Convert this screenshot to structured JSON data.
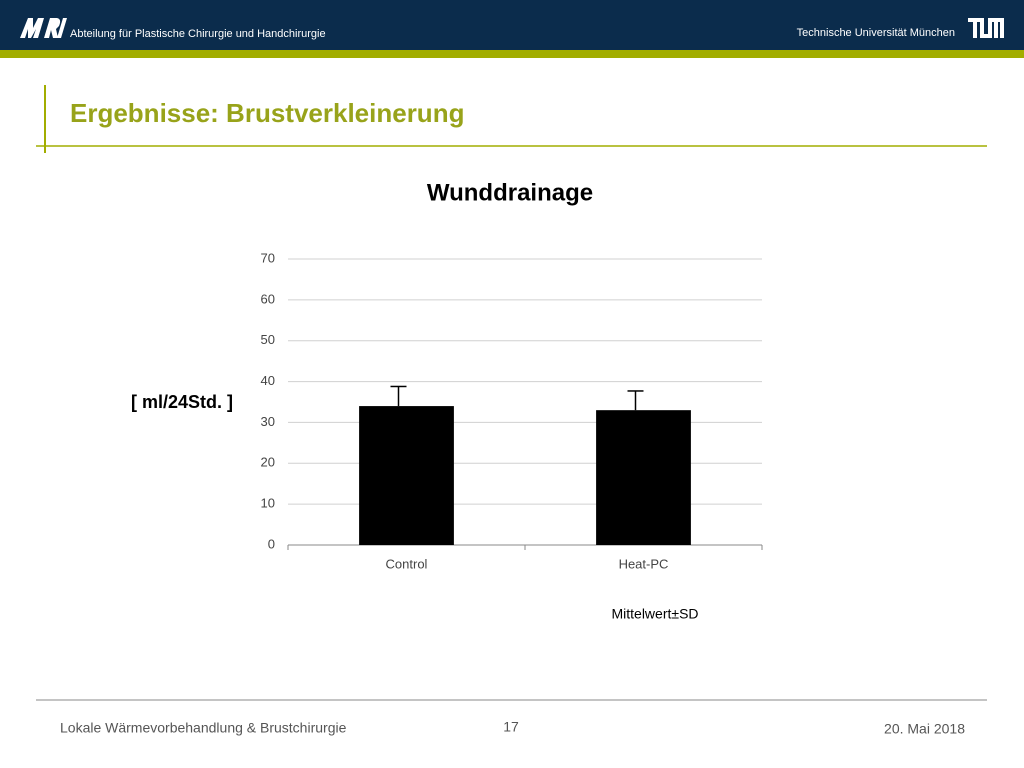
{
  "header": {
    "department": "Abteilung für Plastische Chirurgie und Handchirurgie",
    "university": "Technische Universität München"
  },
  "slide_title": "Ergebnisse: Brustverkleinerung",
  "chart_data": {
    "type": "bar",
    "title": "Wunddrainage",
    "y_label": "[ ml/24Std. ]",
    "categories": [
      "Control",
      "Heat-PC"
    ],
    "values": [
      34,
      33
    ],
    "errors": [
      4.8,
      4.7
    ],
    "color": "#000000",
    "ylim": [
      0,
      70
    ],
    "yticks": [
      0,
      10,
      20,
      30,
      40,
      50,
      60,
      70
    ],
    "grid": true,
    "annotation": "Mittelwert±SD"
  },
  "footer": {
    "left": "Lokale Wärmevorbehandlung & Brustchirurgie",
    "page": "17",
    "date": "20. Mai 2018"
  }
}
